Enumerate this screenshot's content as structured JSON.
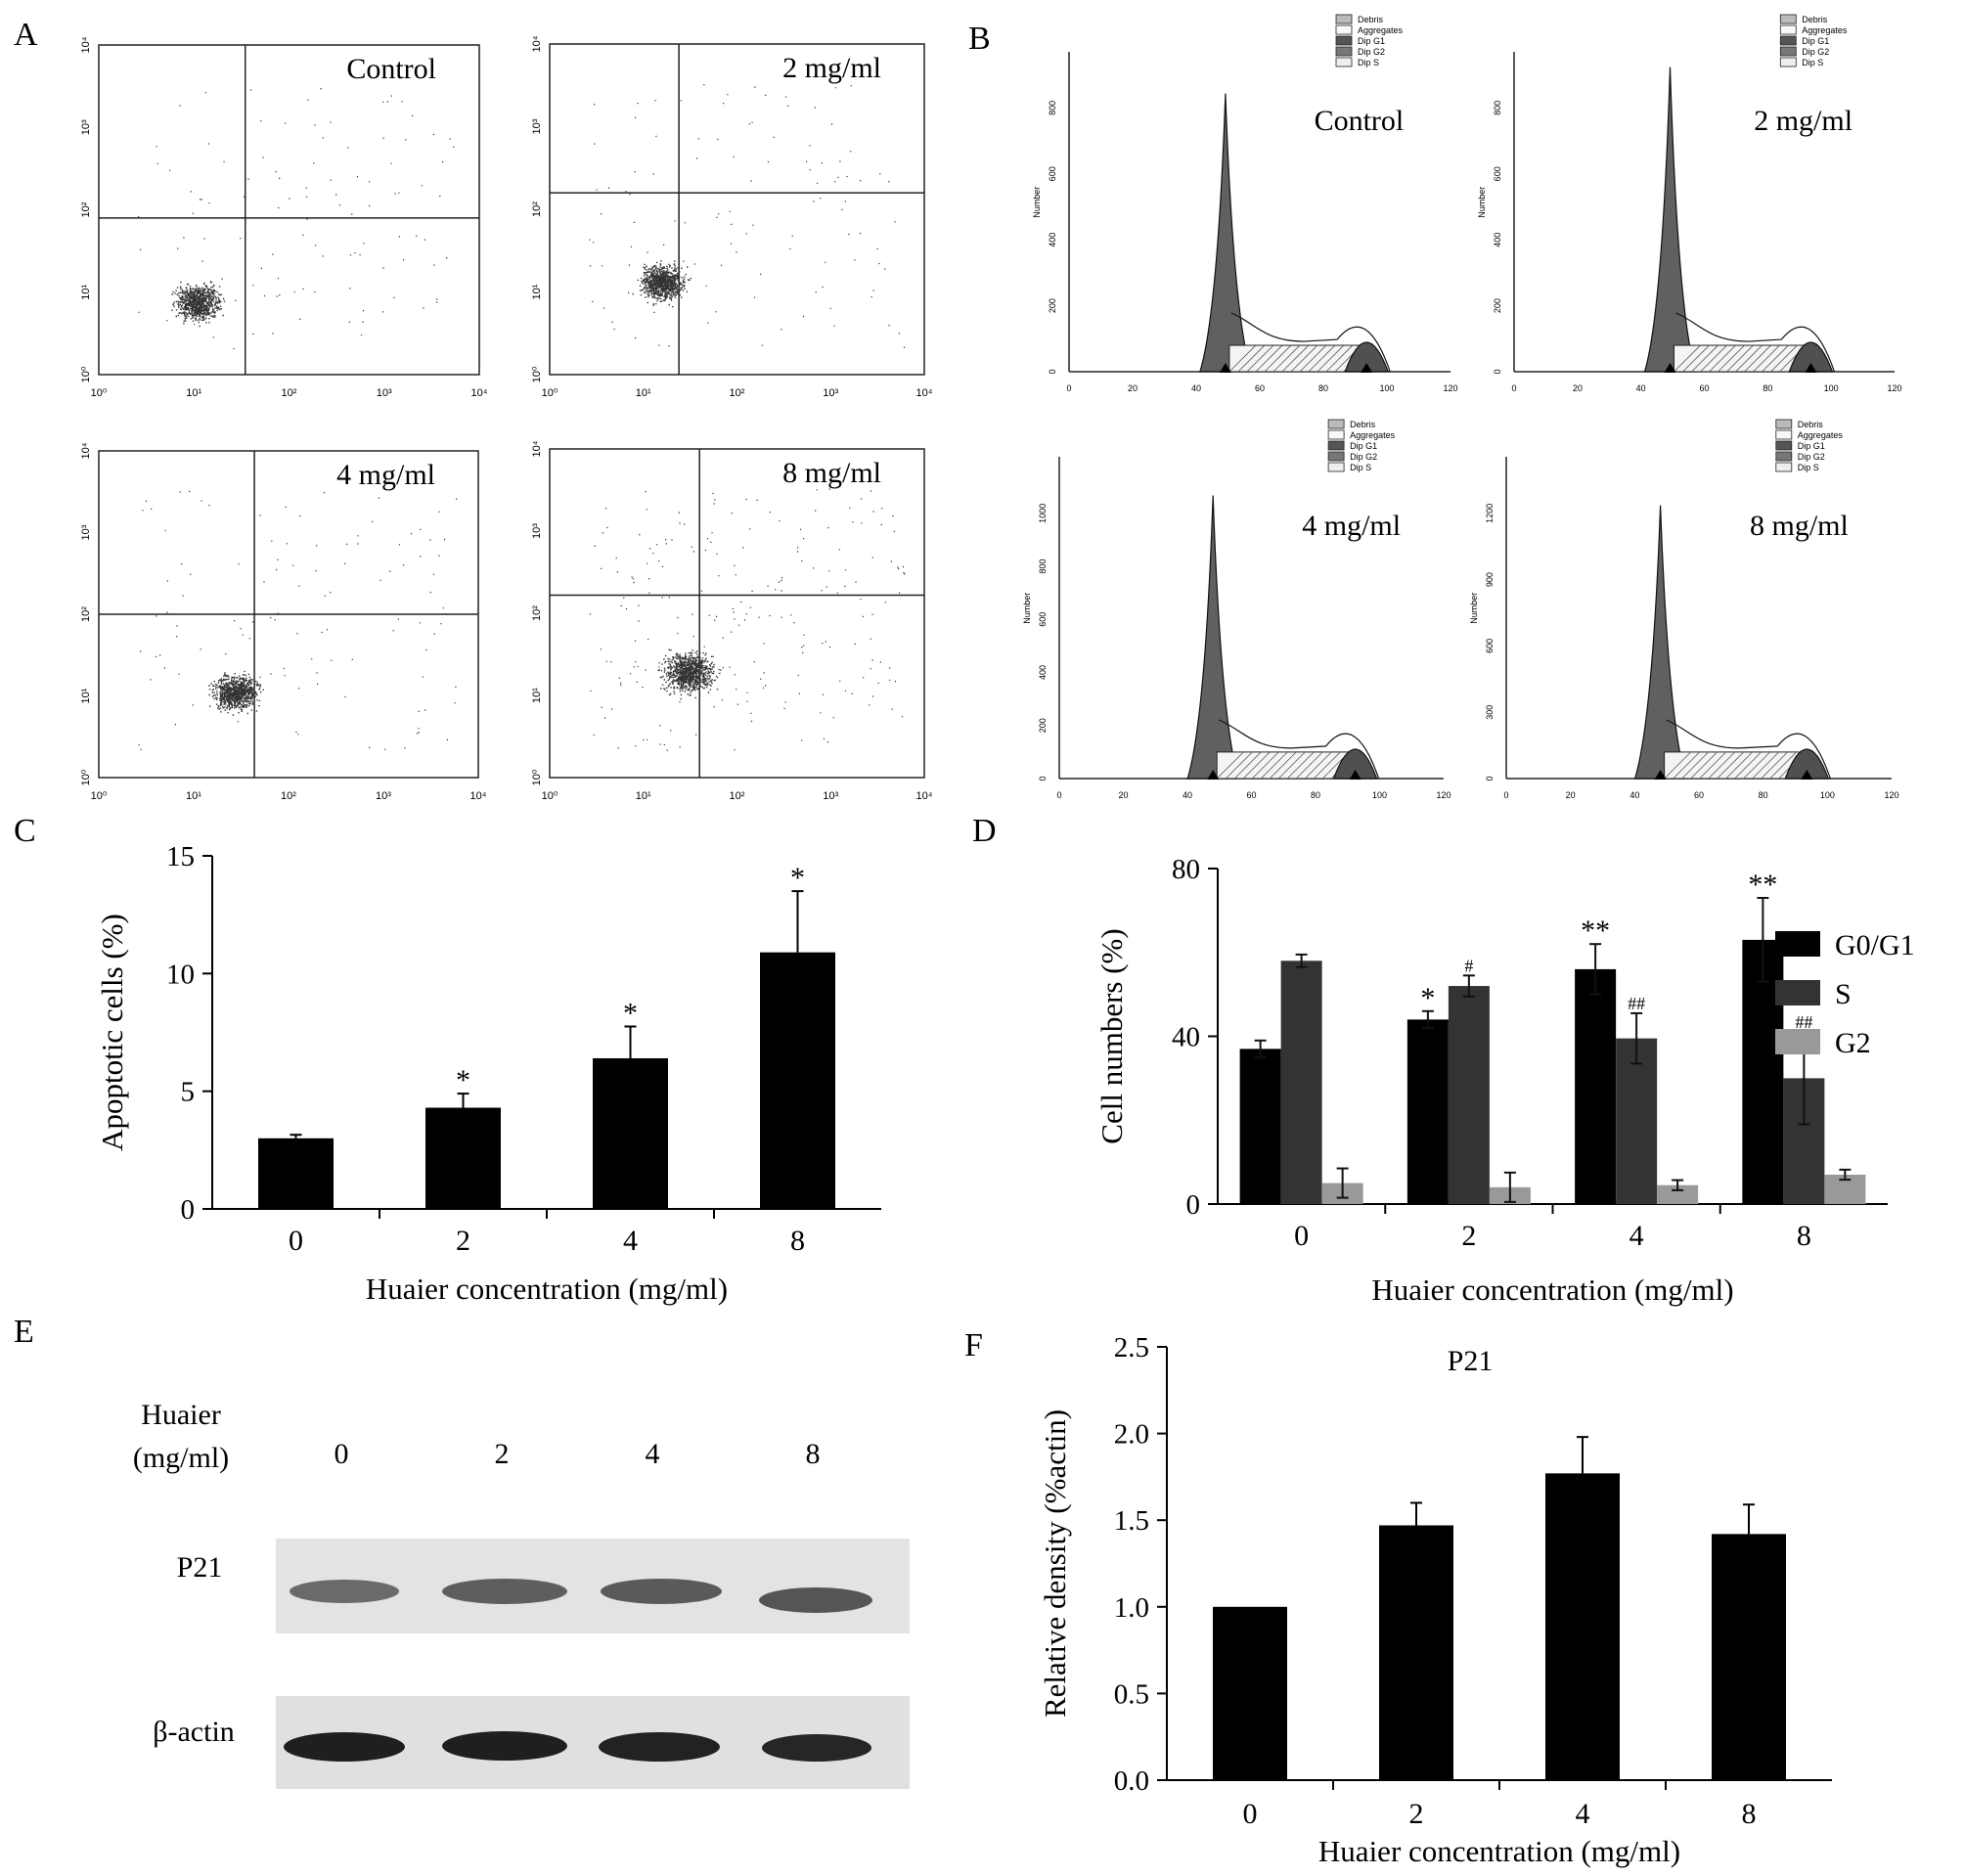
{
  "panel_letters": [
    "A",
    "B",
    "C",
    "D",
    "E",
    "F"
  ],
  "scatter_panels": [
    {
      "title": "Control",
      "xticks": [
        "10⁰",
        "10¹",
        "10²",
        "10³",
        "10⁴"
      ],
      "yticks": [
        "10⁰",
        "10¹",
        "10²",
        "10³",
        "10⁴"
      ]
    },
    {
      "title": "2 mg/ml",
      "xticks": [
        "10⁰",
        "10¹",
        "10²",
        "10³",
        "10⁴"
      ],
      "yticks": [
        "10⁰",
        "10¹",
        "10²",
        "10³",
        "10⁴"
      ]
    },
    {
      "title": "4 mg/ml",
      "xticks": [
        "10⁰",
        "10¹",
        "10²",
        "10³",
        "10⁴"
      ],
      "yticks": [
        "10⁰",
        "10¹",
        "10²",
        "10³",
        "10⁴"
      ]
    },
    {
      "title": "8 mg/ml",
      "xticks": [
        "10⁰",
        "10¹",
        "10²",
        "10³",
        "10⁴"
      ],
      "yticks": [
        "10⁰",
        "10¹",
        "10²",
        "10³",
        "10⁴"
      ]
    }
  ],
  "histogram_panels": [
    {
      "title": "Control",
      "ylabel": "Number",
      "yticks": [
        "0",
        "200",
        "400",
        "600",
        "800"
      ],
      "xticks": [
        "0",
        "20",
        "40",
        "60",
        "80",
        "100",
        "120"
      ],
      "legend": [
        "Debris",
        "Aggregates",
        "Dip G1",
        "Dip G2",
        "Dip S"
      ]
    },
    {
      "title": "2 mg/ml",
      "ylabel": "Number",
      "yticks": [
        "0",
        "200",
        "400",
        "600",
        "800"
      ],
      "xticks": [
        "0",
        "20",
        "40",
        "60",
        "80",
        "100",
        "120"
      ],
      "legend": [
        "Debris",
        "Aggregates",
        "Dip G1",
        "Dip G2",
        "Dip S"
      ]
    },
    {
      "title": "4 mg/ml",
      "ylabel": "Number",
      "yticks": [
        "0",
        "200",
        "400",
        "600",
        "800",
        "1000"
      ],
      "xticks": [
        "0",
        "20",
        "40",
        "60",
        "80",
        "100",
        "120"
      ],
      "legend": [
        "Debris",
        "Aggregates",
        "Dip G1",
        "Dip G2",
        "Dip S"
      ]
    },
    {
      "title": "8 mg/ml",
      "ylabel": "Number",
      "yticks": [
        "0",
        "300",
        "600",
        "900",
        "1200"
      ],
      "xticks": [
        "0",
        "20",
        "40",
        "60",
        "80",
        "100",
        "120"
      ],
      "legend": [
        "Debris",
        "Aggregates",
        "Dip G1",
        "Dip G2",
        "Dip S"
      ]
    }
  ],
  "chart_data": [
    {
      "id": "C",
      "type": "bar",
      "categories": [
        "0",
        "2",
        "4",
        "8"
      ],
      "values": [
        3.0,
        4.3,
        6.4,
        10.9
      ],
      "errors": [
        0.15,
        0.6,
        1.35,
        2.6
      ],
      "annotations": [
        "",
        "*",
        "*",
        "*"
      ],
      "xlabel": "Huaier concentration (mg/ml)",
      "ylabel": "Apoptotic cells (%)",
      "ylim": [
        0,
        15
      ],
      "yticks": [
        "0",
        "5",
        "10",
        "15"
      ]
    },
    {
      "id": "D",
      "type": "bar",
      "categories": [
        "0",
        "2",
        "4",
        "8"
      ],
      "series": [
        {
          "name": "G0/G1",
          "color": "#000000",
          "values": [
            37,
            44,
            56,
            63
          ],
          "errors": [
            2,
            2,
            6,
            10
          ],
          "annotations": [
            "",
            "*",
            "**",
            "**"
          ]
        },
        {
          "name": "S",
          "color": "#333333",
          "values": [
            58,
            52,
            39.5,
            30
          ],
          "errors": [
            1.5,
            2.5,
            6,
            11
          ],
          "annotations": [
            "",
            "#",
            "##",
            "##"
          ]
        },
        {
          "name": "G2",
          "color": "#999999",
          "values": [
            5,
            4,
            4.5,
            7
          ],
          "errors": [
            3.5,
            3.5,
            1.2,
            1.2
          ],
          "annotations": [
            "",
            "",
            "",
            ""
          ]
        }
      ],
      "xlabel": "Huaier concentration (mg/ml)",
      "ylabel": "Cell numbers (%)",
      "ylim": [
        0,
        80
      ],
      "yticks": [
        "0",
        "40",
        "80"
      ]
    },
    {
      "id": "F",
      "type": "bar",
      "categories": [
        "0",
        "2",
        "4",
        "8"
      ],
      "values": [
        1.0,
        1.47,
        1.77,
        1.42
      ],
      "errors": [
        0,
        0.13,
        0.21,
        0.17
      ],
      "title": "P21",
      "xlabel": "Huaier concentration (mg/ml)",
      "ylabel": "Relative density (%actin)",
      "ylim": [
        0,
        2.5
      ],
      "yticks": [
        "0.0",
        "0.5",
        "1.0",
        "1.5",
        "2.0",
        "2.5"
      ]
    }
  ],
  "western_blot": {
    "header_line1": "Huaier",
    "header_line2": "(mg/ml)",
    "lanes": [
      "0",
      "2",
      "4",
      "8"
    ],
    "rows": [
      "P21",
      "β-actin"
    ]
  }
}
